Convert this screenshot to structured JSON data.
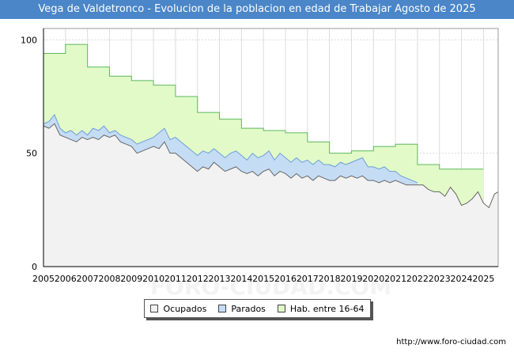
{
  "title": "Vega de Valdetronco - Evolucion de la poblacion en edad de Trabajar Agosto de 2025",
  "source": "http://www.foro-ciudad.com",
  "watermark": "FORO-CIUDAD.COM",
  "colors": {
    "title_bg": "#4a86c8",
    "ocupados_fill": "#f2f2f2",
    "ocupados_line": "#666666",
    "parados_fill": "#c5dcf5",
    "parados_line": "#6a9fd8",
    "hab_fill": "#e2fac8",
    "hab_line": "#5cb85c"
  },
  "chart_data": {
    "type": "area",
    "title": "Vega de Valdetronco - Evolucion de la poblacion en edad de Trabajar Agosto de 2025",
    "xlabel": "",
    "ylabel": "",
    "xlim": [
      2005,
      2025.67
    ],
    "ylim": [
      0,
      105
    ],
    "y_ticks": [
      0,
      50,
      100
    ],
    "x_ticks": [
      "2005",
      "2006",
      "2007",
      "2008",
      "2009",
      "2010",
      "2011",
      "2012",
      "2013",
      "2014",
      "2015",
      "2016",
      "2017",
      "2018",
      "2019",
      "2020",
      "2021",
      "2022",
      "2023",
      "2024",
      "2025"
    ],
    "grid": true,
    "legend_position": "bottom",
    "series": [
      {
        "name": "Hab. entre 16-64",
        "step": true,
        "points": [
          [
            2005,
            94
          ],
          [
            2006,
            98
          ],
          [
            2007,
            88
          ],
          [
            2008,
            84
          ],
          [
            2009,
            82
          ],
          [
            2010,
            80
          ],
          [
            2011,
            75
          ],
          [
            2012,
            68
          ],
          [
            2013,
            65
          ],
          [
            2014,
            61
          ],
          [
            2015,
            60
          ],
          [
            2016,
            59
          ],
          [
            2017,
            55
          ],
          [
            2018,
            50
          ],
          [
            2019,
            51
          ],
          [
            2020,
            53
          ],
          [
            2021,
            54
          ],
          [
            2022,
            45
          ],
          [
            2023,
            43
          ],
          [
            2024,
            43
          ]
        ]
      },
      {
        "name": "Parados",
        "points": [
          [
            2005,
            63
          ],
          [
            2005.25,
            64
          ],
          [
            2005.5,
            67
          ],
          [
            2005.75,
            61
          ],
          [
            2006,
            59
          ],
          [
            2006.25,
            60
          ],
          [
            2006.5,
            58
          ],
          [
            2006.75,
            60
          ],
          [
            2007,
            58
          ],
          [
            2007.25,
            61
          ],
          [
            2007.5,
            60
          ],
          [
            2007.75,
            62
          ],
          [
            2008,
            59
          ],
          [
            2008.25,
            60
          ],
          [
            2008.5,
            58
          ],
          [
            2008.75,
            57
          ],
          [
            2009,
            56
          ],
          [
            2009.25,
            54
          ],
          [
            2009.5,
            55
          ],
          [
            2009.75,
            56
          ],
          [
            2010,
            57
          ],
          [
            2010.25,
            59
          ],
          [
            2010.5,
            61
          ],
          [
            2010.75,
            56
          ],
          [
            2011,
            57
          ],
          [
            2011.25,
            55
          ],
          [
            2011.5,
            53
          ],
          [
            2011.75,
            51
          ],
          [
            2012,
            49
          ],
          [
            2012.25,
            51
          ],
          [
            2012.5,
            50
          ],
          [
            2012.75,
            52
          ],
          [
            2013,
            50
          ],
          [
            2013.25,
            48
          ],
          [
            2013.5,
            50
          ],
          [
            2013.75,
            51
          ],
          [
            2014,
            49
          ],
          [
            2014.25,
            47
          ],
          [
            2014.5,
            50
          ],
          [
            2014.75,
            48
          ],
          [
            2015,
            49
          ],
          [
            2015.25,
            51
          ],
          [
            2015.5,
            47
          ],
          [
            2015.75,
            50
          ],
          [
            2016,
            48
          ],
          [
            2016.25,
            46
          ],
          [
            2016.5,
            48
          ],
          [
            2016.75,
            46
          ],
          [
            2017,
            47
          ],
          [
            2017.25,
            45
          ],
          [
            2017.5,
            47
          ],
          [
            2017.75,
            45
          ],
          [
            2018,
            45
          ],
          [
            2018.25,
            44
          ],
          [
            2018.5,
            46
          ],
          [
            2018.75,
            45
          ],
          [
            2019,
            46
          ],
          [
            2019.25,
            47
          ],
          [
            2019.5,
            48
          ],
          [
            2019.75,
            44
          ],
          [
            2020,
            44
          ],
          [
            2020.25,
            43
          ],
          [
            2020.5,
            44
          ],
          [
            2020.75,
            42
          ],
          [
            2021,
            42
          ],
          [
            2021.25,
            40
          ],
          [
            2021.5,
            39
          ],
          [
            2021.75,
            38
          ],
          [
            2022,
            37
          ]
        ]
      },
      {
        "name": "Ocupados",
        "points": [
          [
            2005,
            62
          ],
          [
            2005.25,
            61
          ],
          [
            2005.5,
            63
          ],
          [
            2005.75,
            58
          ],
          [
            2006,
            57
          ],
          [
            2006.25,
            56
          ],
          [
            2006.5,
            55
          ],
          [
            2006.75,
            57
          ],
          [
            2007,
            56
          ],
          [
            2007.25,
            57
          ],
          [
            2007.5,
            56
          ],
          [
            2007.75,
            58
          ],
          [
            2008,
            57
          ],
          [
            2008.25,
            58
          ],
          [
            2008.5,
            55
          ],
          [
            2008.75,
            54
          ],
          [
            2009,
            53
          ],
          [
            2009.25,
            50
          ],
          [
            2009.5,
            51
          ],
          [
            2009.75,
            52
          ],
          [
            2010,
            53
          ],
          [
            2010.25,
            52
          ],
          [
            2010.5,
            55
          ],
          [
            2010.75,
            50
          ],
          [
            2011,
            50
          ],
          [
            2011.25,
            48
          ],
          [
            2011.5,
            46
          ],
          [
            2011.75,
            44
          ],
          [
            2012,
            42
          ],
          [
            2012.25,
            44
          ],
          [
            2012.5,
            43
          ],
          [
            2012.75,
            46
          ],
          [
            2013,
            44
          ],
          [
            2013.25,
            42
          ],
          [
            2013.5,
            43
          ],
          [
            2013.75,
            44
          ],
          [
            2014,
            42
          ],
          [
            2014.25,
            41
          ],
          [
            2014.5,
            42
          ],
          [
            2014.75,
            40
          ],
          [
            2015,
            42
          ],
          [
            2015.25,
            43
          ],
          [
            2015.5,
            40
          ],
          [
            2015.75,
            42
          ],
          [
            2016,
            41
          ],
          [
            2016.25,
            39
          ],
          [
            2016.5,
            41
          ],
          [
            2016.75,
            39
          ],
          [
            2017,
            40
          ],
          [
            2017.25,
            38
          ],
          [
            2017.5,
            40
          ],
          [
            2017.75,
            39
          ],
          [
            2018,
            38
          ],
          [
            2018.25,
            38
          ],
          [
            2018.5,
            40
          ],
          [
            2018.75,
            39
          ],
          [
            2019,
            40
          ],
          [
            2019.25,
            39
          ],
          [
            2019.5,
            40
          ],
          [
            2019.75,
            38
          ],
          [
            2020,
            38
          ],
          [
            2020.25,
            37
          ],
          [
            2020.5,
            38
          ],
          [
            2020.75,
            37
          ],
          [
            2021,
            38
          ],
          [
            2021.25,
            37
          ],
          [
            2021.5,
            36
          ],
          [
            2021.75,
            36
          ],
          [
            2022,
            36
          ],
          [
            2022.25,
            36
          ],
          [
            2022.5,
            34
          ],
          [
            2022.75,
            33
          ],
          [
            2023,
            33
          ],
          [
            2023.25,
            31
          ],
          [
            2023.5,
            35
          ],
          [
            2023.75,
            32
          ],
          [
            2024,
            27
          ],
          [
            2024.25,
            28
          ],
          [
            2024.5,
            30
          ],
          [
            2024.75,
            33
          ],
          [
            2025,
            28
          ],
          [
            2025.25,
            26
          ],
          [
            2025.5,
            32
          ],
          [
            2025.67,
            33
          ]
        ]
      }
    ]
  },
  "legend": [
    {
      "label": "Ocupados",
      "color": "#f2f2f2"
    },
    {
      "label": "Parados",
      "color": "#c5dcf5"
    },
    {
      "label": "Hab. entre 16-64",
      "color": "#e2fac8"
    }
  ]
}
